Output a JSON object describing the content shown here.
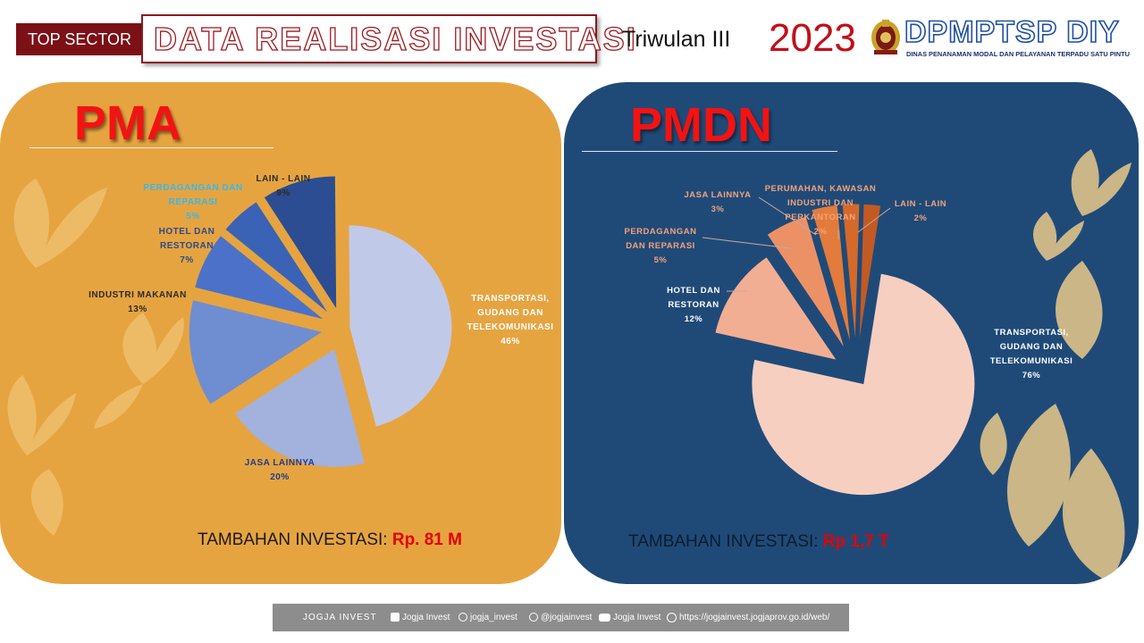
{
  "header": {
    "badge": "TOP SECTOR",
    "title": "DATA REALISASI INVESTASI",
    "period": "Triwulan III",
    "year": "2023",
    "agency_name": "DPMPTSP DIY",
    "agency_full": "DINAS PENANAMAN MODAL DAN PELAYANAN TERPADU SATU PINTU"
  },
  "pma": {
    "label": "PMA",
    "total_label": "TAMBAHAN INVESTASI: ",
    "total_value": "Rp. 81 M"
  },
  "pmdn": {
    "label": "PMDN",
    "total_label": "TAMBAHAN INVESTASI: ",
    "total_value": "Rp 1,7 T"
  },
  "chart_data": [
    {
      "type": "pie",
      "title": "PMA",
      "categories": [
        "TRANSPORTASI, GUDANG DAN TELEKOMUNIKASI",
        "JASA LAINNYA",
        "INDUSTRI MAKANAN",
        "HOTEL DAN RESTORAN",
        "PERDAGANGAN DAN REPARASI",
        "LAIN - LAIN"
      ],
      "label_lines": [
        [
          "TRANSPORTASI,",
          "GUDANG DAN",
          "TELEKOMUNIKASI"
        ],
        [
          "JASA LAINNYA"
        ],
        [
          "INDUSTRI MAKANAN"
        ],
        [
          "HOTEL DAN",
          "RESTORAN"
        ],
        [
          "PERDAGANGAN DAN",
          "REPARASI"
        ],
        [
          "LAIN - LAIN"
        ]
      ],
      "values": [
        46,
        20,
        13,
        7,
        5,
        9
      ],
      "value_labels": [
        "46%",
        "20%",
        "13%",
        "7%",
        "5%",
        "9%"
      ],
      "colors": [
        "#c1c9e8",
        "#a3b1dd",
        "#6f8dd1",
        "#4b72c8",
        "#3a63b6",
        "#2c4d91"
      ],
      "label_colors": [
        "#ffffff",
        "#1f3d8c",
        "#2b2b2b",
        "#2a4a8e",
        "#34b8f0",
        "#2b2b2b"
      ],
      "value_label_colors": [
        "#ffffff",
        "#1f3d8c",
        "#2b2b2b",
        "#2a4a8e",
        "#34b8f0",
        "#2b2b2b"
      ]
    },
    {
      "type": "pie",
      "title": "PMDN",
      "categories": [
        "TRANSPORTASI, GUDANG DAN TELEKOMUNIKASI",
        "HOTEL DAN RESTORAN",
        "PERDAGANGAN DAN REPARASI",
        "JASA LAINNYA",
        "PERUMAHAN, KAWASAN INDUSTRI DAN PERKANTORAN",
        "LAIN - LAIN"
      ],
      "label_lines": [
        [
          "TRANSPORTASI,",
          "GUDANG DAN",
          "TELEKOMUNIKASI"
        ],
        [
          "HOTEL DAN",
          "RESTORAN"
        ],
        [
          "PERDAGANGAN",
          "DAN REPARASI"
        ],
        [
          "JASA LAINNYA"
        ],
        [
          "PERUMAHAN, KAWASAN",
          "INDUSTRI DAN",
          "PERKANTORAN"
        ],
        [
          "LAIN - LAIN"
        ]
      ],
      "values": [
        76,
        12,
        5,
        3,
        2,
        2
      ],
      "value_labels": [
        "76%",
        "12%",
        "5%",
        "3%",
        "2%",
        "2%"
      ],
      "colors": [
        "#f6cfc1",
        "#f2ae93",
        "#ec9166",
        "#e27b3c",
        "#d4692a",
        "#c25a24"
      ],
      "label_colors": [
        "#ffffff",
        "#ffffff",
        "#f2a27a",
        "#f2a27a",
        "#f2a27a",
        "#f2a27a"
      ],
      "value_label_colors": [
        "#ffffff",
        "#ffffff",
        "#f2a27a",
        "#f2a27a",
        "#f2a27a",
        "#f2a27a"
      ]
    }
  ],
  "footer": {
    "brand": "JOGJA INVEST",
    "facebook": "Jogja Invest",
    "instagram": "jogja_invest",
    "twitter": "@jogjainvest",
    "youtube": "Jogja Invest",
    "website": "https://jogjainvest.jogjaprov.go.id/web/"
  }
}
